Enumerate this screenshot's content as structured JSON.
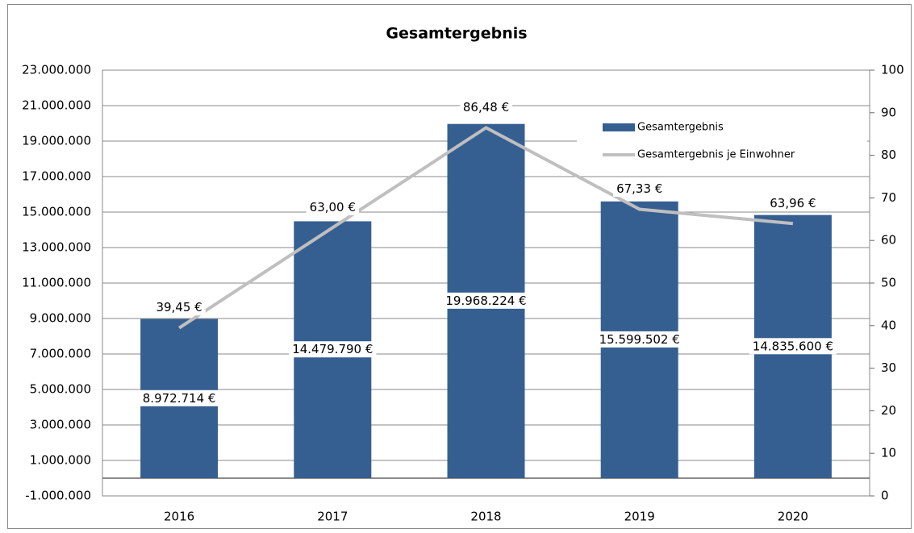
{
  "chart_data": {
    "type": "bar",
    "title": "Gesamtergebnis",
    "categories": [
      "2016",
      "2017",
      "2018",
      "2019",
      "2020"
    ],
    "series": [
      {
        "name": "Gesamtergebnis",
        "type": "bar",
        "color": "#365f91",
        "values": [
          8972714,
          14479790,
          19968224,
          15599502,
          14835600
        ],
        "value_labels": [
          "8.972.714 €",
          "14.479.790 €",
          "19.968.224 €",
          "15.599.502 €",
          "14.835.600 €"
        ]
      },
      {
        "name": "Gesamtergebnis je Einwohner",
        "type": "line",
        "axis": "y2",
        "color": "#bfbfbf",
        "values": [
          39.45,
          63.0,
          86.48,
          67.33,
          63.96
        ],
        "value_labels": [
          "39,45 €",
          "63,00 €",
          "86,48 €",
          "67,33 €",
          "63,96 €"
        ]
      }
    ],
    "ylim": [
      -1000000,
      23000000
    ],
    "yticks": [
      {
        "value": -1000000,
        "label": "-1.000.000"
      },
      {
        "value": 1000000,
        "label": "1.000.000"
      },
      {
        "value": 3000000,
        "label": "3.000.000"
      },
      {
        "value": 5000000,
        "label": "5.000.000"
      },
      {
        "value": 7000000,
        "label": "7.000.000"
      },
      {
        "value": 9000000,
        "label": "9.000.000"
      },
      {
        "value": 11000000,
        "label": "11.000.000"
      },
      {
        "value": 13000000,
        "label": "13.000.000"
      },
      {
        "value": 15000000,
        "label": "15.000.000"
      },
      {
        "value": 17000000,
        "label": "17.000.000"
      },
      {
        "value": 19000000,
        "label": "19.000.000"
      },
      {
        "value": 21000000,
        "label": "21.000.000"
      },
      {
        "value": 23000000,
        "label": "23.000.000"
      }
    ],
    "y2lim": [
      0,
      100
    ],
    "y2ticks": [
      0,
      10,
      20,
      30,
      40,
      50,
      60,
      70,
      80,
      90,
      100
    ],
    "grid": true,
    "legend": "upper right"
  }
}
